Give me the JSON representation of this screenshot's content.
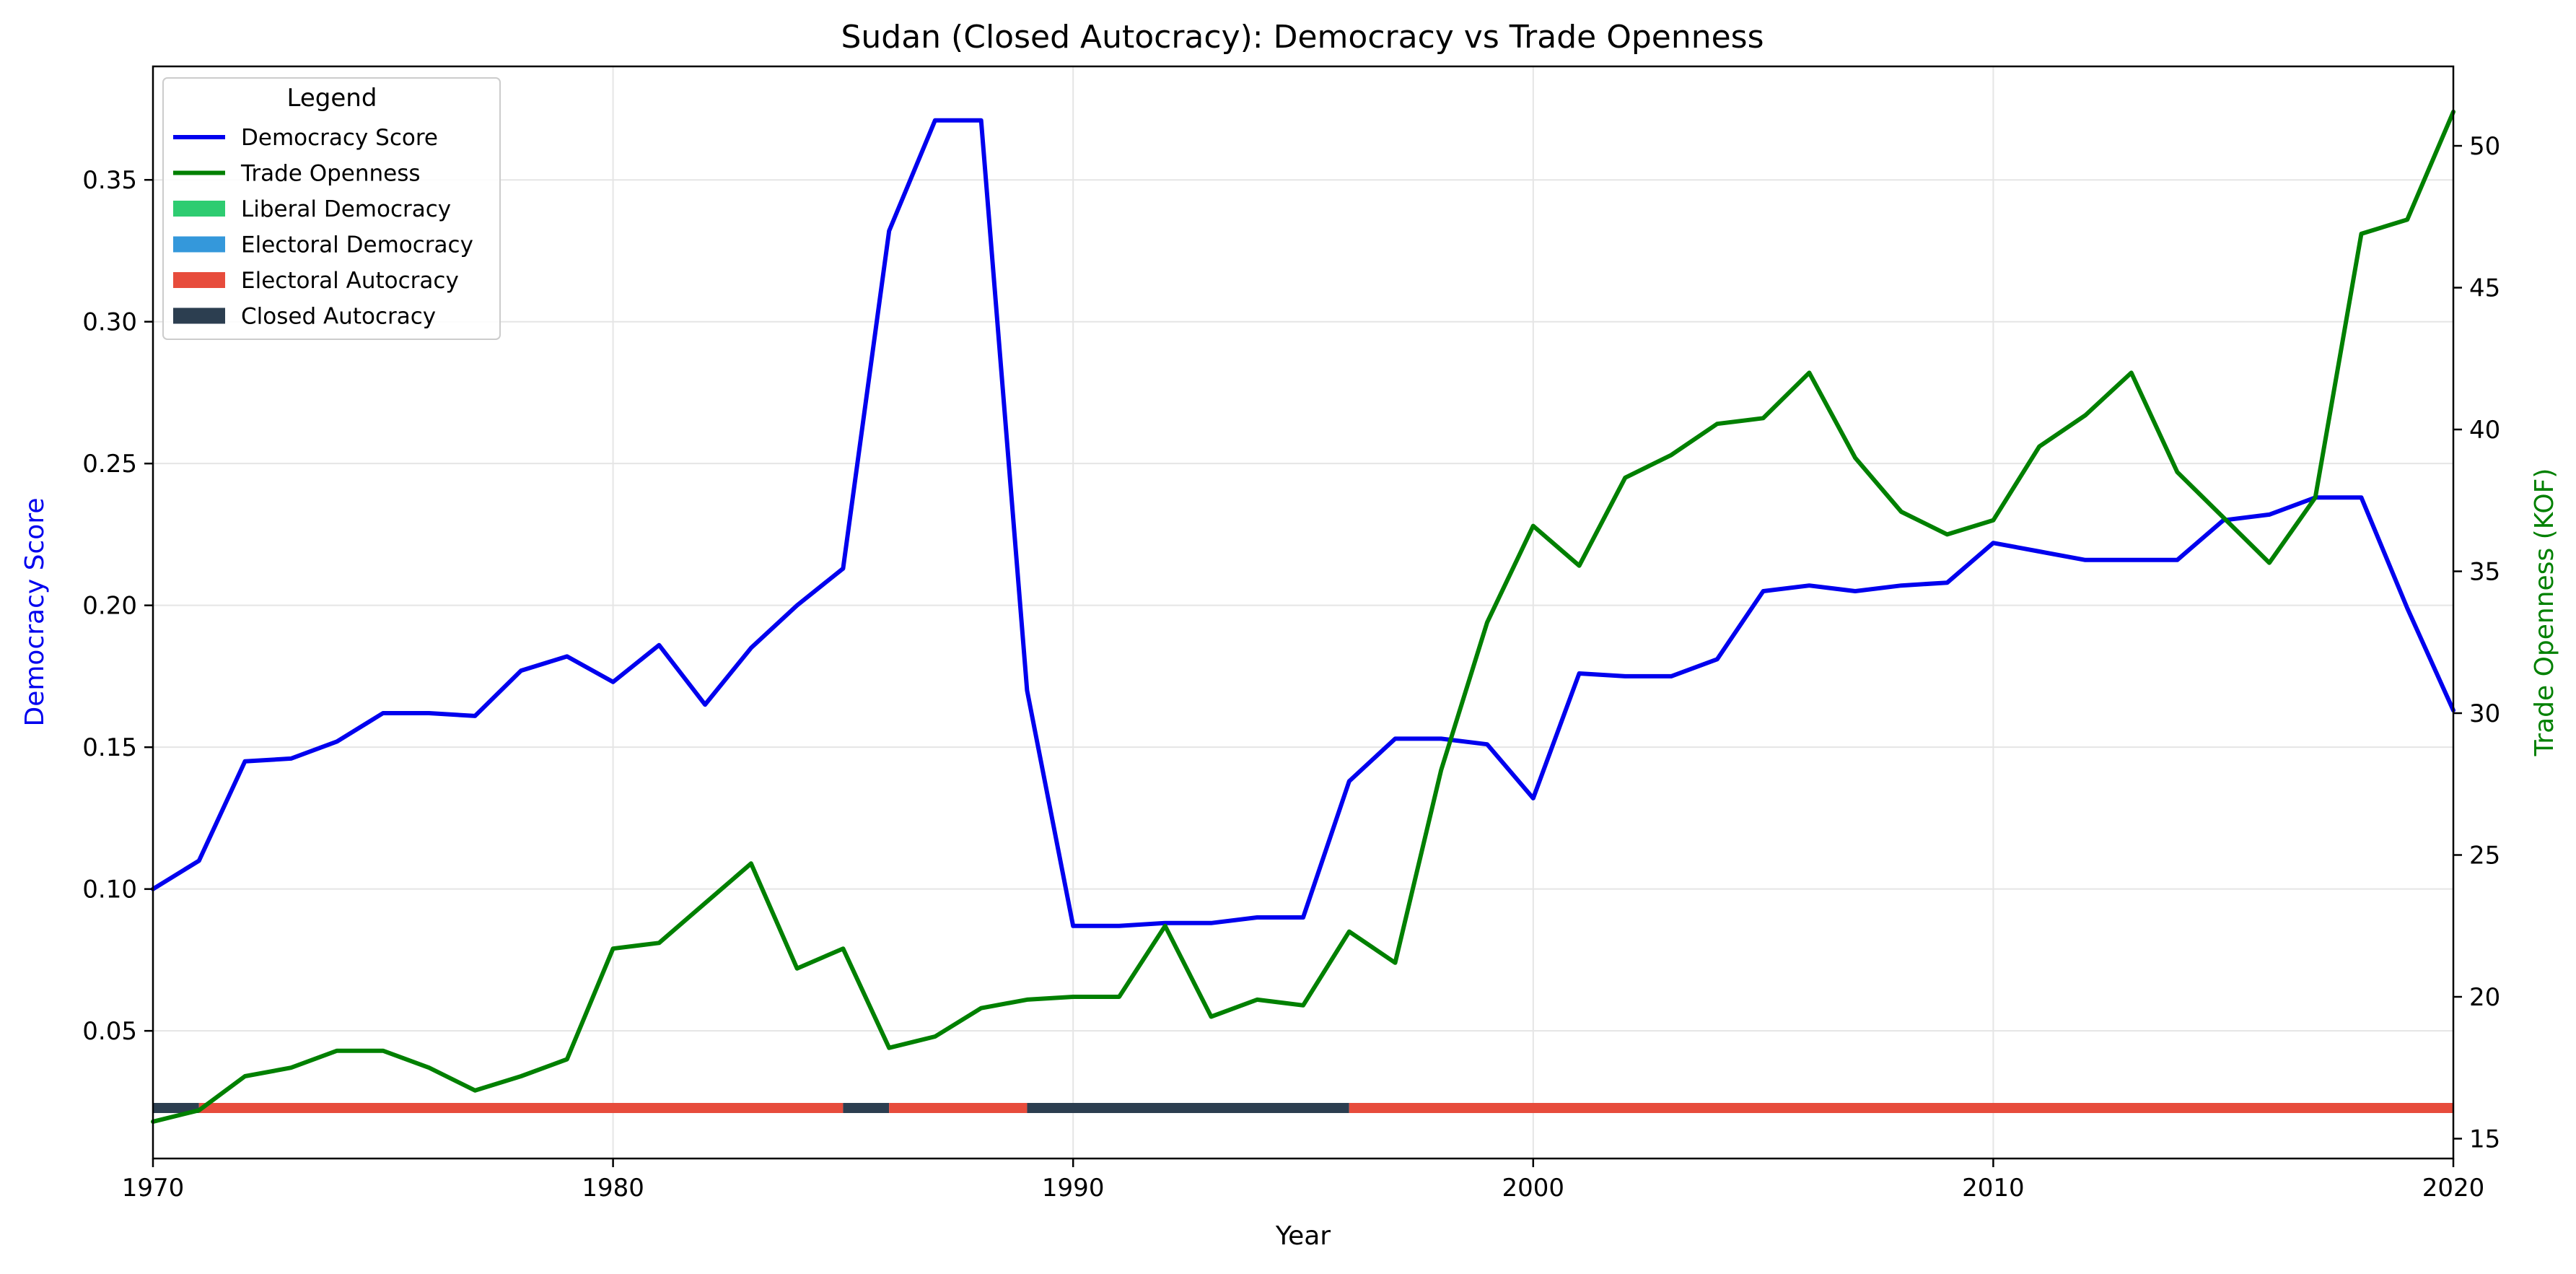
{
  "chart_data": {
    "type": "line",
    "title": "Sudan (Closed Autocracy): Democracy vs Trade Openness",
    "xlabel": "Year",
    "ylabel_left": "Democracy Score",
    "ylabel_right": "Trade Openness (KOF)",
    "xlim": [
      1970,
      2020
    ],
    "ylim_left": [
      0.005,
      0.39
    ],
    "ylim_right": [
      14.3,
      52.8
    ],
    "x_ticks": [
      1970,
      1980,
      1990,
      2000,
      2010,
      2020
    ],
    "y_left_ticks": [
      0.05,
      0.1,
      0.15,
      0.2,
      0.25,
      0.3,
      0.35
    ],
    "y_left_tick_labels": [
      "0.05",
      "0.10",
      "0.15",
      "0.20",
      "0.25",
      "0.30",
      "0.35"
    ],
    "y_right_ticks": [
      15,
      20,
      25,
      30,
      35,
      40,
      45,
      50
    ],
    "grid": true,
    "legend_title": "Legend",
    "legend_position": "top-left",
    "legend": [
      {
        "label": "Democracy Score",
        "kind": "line",
        "color": "#0000ee"
      },
      {
        "label": "Trade Openness",
        "kind": "line",
        "color": "#008000"
      },
      {
        "label": "Liberal Democracy",
        "kind": "patch",
        "color": "#2ecc71"
      },
      {
        "label": "Electoral Democracy",
        "kind": "patch",
        "color": "#3498db"
      },
      {
        "label": "Electoral Autocracy",
        "kind": "patch",
        "color": "#e74c3c"
      },
      {
        "label": "Closed Autocracy",
        "kind": "patch",
        "color": "#2c3e50"
      }
    ],
    "series": [
      {
        "name": "Democracy Score",
        "axis": "left",
        "color": "#0000ee",
        "x": [
          1970,
          1971,
          1972,
          1973,
          1974,
          1975,
          1976,
          1977,
          1978,
          1979,
          1980,
          1981,
          1982,
          1983,
          1984,
          1985,
          1986,
          1987,
          1988,
          1989,
          1990,
          1991,
          1992,
          1993,
          1994,
          1995,
          1996,
          1997,
          1998,
          1999,
          2000,
          2001,
          2002,
          2003,
          2004,
          2005,
          2006,
          2007,
          2008,
          2009,
          2010,
          2011,
          2012,
          2013,
          2014,
          2015,
          2016,
          2017,
          2018,
          2019,
          2020
        ],
        "values": [
          0.1,
          0.11,
          0.145,
          0.146,
          0.152,
          0.162,
          0.162,
          0.161,
          0.177,
          0.182,
          0.173,
          0.186,
          0.165,
          0.185,
          0.2,
          0.213,
          0.332,
          0.371,
          0.371,
          0.17,
          0.087,
          0.087,
          0.088,
          0.088,
          0.09,
          0.09,
          0.138,
          0.153,
          0.153,
          0.151,
          0.132,
          0.176,
          0.175,
          0.175,
          0.181,
          0.205,
          0.207,
          0.205,
          0.207,
          0.208,
          0.222,
          0.219,
          0.216,
          0.216,
          0.216,
          0.23,
          0.232,
          0.238,
          0.238,
          0.199,
          0.163
        ]
      },
      {
        "name": "Trade Openness",
        "axis": "right",
        "color": "#008000",
        "x": [
          1970,
          1971,
          1972,
          1973,
          1974,
          1975,
          1976,
          1977,
          1978,
          1979,
          1980,
          1981,
          1982,
          1983,
          1984,
          1985,
          1986,
          1987,
          1988,
          1989,
          1990,
          1991,
          1992,
          1993,
          1994,
          1995,
          1996,
          1997,
          1998,
          1999,
          2000,
          2001,
          2002,
          2003,
          2004,
          2005,
          2006,
          2007,
          2008,
          2009,
          2010,
          2011,
          2012,
          2013,
          2014,
          2015,
          2016,
          2017,
          2018,
          2019,
          2020
        ],
        "values": [
          15.6,
          16.0,
          17.2,
          17.5,
          18.1,
          18.1,
          17.5,
          16.7,
          17.2,
          17.8,
          21.7,
          21.9,
          23.3,
          24.7,
          21.0,
          21.7,
          18.2,
          18.6,
          19.6,
          19.9,
          20.0,
          20.0,
          22.5,
          19.3,
          19.9,
          19.7,
          22.3,
          21.2,
          28.0,
          33.2,
          36.6,
          35.2,
          38.3,
          39.1,
          40.2,
          40.4,
          42.0,
          39.0,
          37.1,
          36.3,
          36.8,
          39.4,
          40.5,
          42.0,
          38.5,
          36.9,
          35.3,
          37.6,
          46.9,
          47.4,
          51.2
        ]
      }
    ],
    "regime_bands": [
      {
        "start": 1970,
        "end": 1971,
        "regime": "Closed Autocracy",
        "color": "#2c3e50"
      },
      {
        "start": 1971,
        "end": 1985,
        "regime": "Electoral Autocracy",
        "color": "#e74c3c"
      },
      {
        "start": 1985,
        "end": 1986,
        "regime": "Closed Autocracy",
        "color": "#2c3e50"
      },
      {
        "start": 1986,
        "end": 1989,
        "regime": "Electoral Autocracy",
        "color": "#e74c3c"
      },
      {
        "start": 1989,
        "end": 1996,
        "regime": "Closed Autocracy",
        "color": "#2c3e50"
      },
      {
        "start": 1996,
        "end": 2020,
        "regime": "Electoral Autocracy",
        "color": "#e74c3c"
      }
    ]
  }
}
